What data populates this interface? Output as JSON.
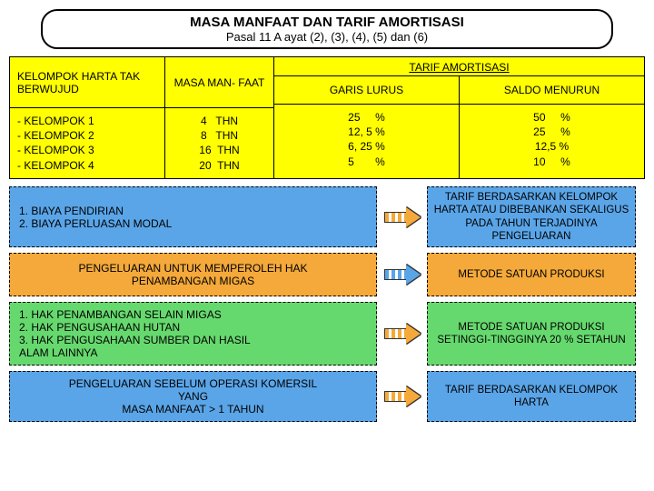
{
  "title": {
    "line1": "MASA MANFAAT DAN TARIF AMORTISASI",
    "line2": "Pasal 11 A ayat (2), (3), (4), (5) dan (6)"
  },
  "table": {
    "bg": "#ffff00",
    "headers": {
      "col1": "KELOMPOK HARTA TAK BERWUJUD",
      "col2": "MASA MAN- FAAT",
      "col34_top": "TARIF AMORTISASI",
      "col3": "GARIS LURUS",
      "col4": "SALDO MENURUN"
    },
    "body": {
      "col1": [
        "- KELOMPOK 1",
        "- KELOMPOK 2",
        "- KELOMPOK 3",
        "- KELOMPOK 4"
      ],
      "col2": [
        "4   THN",
        "8   THN",
        "16  THN",
        "20  THN"
      ],
      "col3": [
        "25     %",
        "12, 5 %",
        "6, 25 %",
        "5       %"
      ],
      "col4": [
        "50     %",
        "25     %",
        "12,5 %",
        "10     %"
      ]
    }
  },
  "rows": [
    {
      "left_bg": "#5aa5e8",
      "left_align": "left",
      "left_width": 405,
      "left_lines": [
        "1. BIAYA PENDIRIAN",
        "2. BIAYA PERLUASAN MODAL"
      ],
      "arrow_color": "#f4a93a",
      "right_bg": "#5aa5e8",
      "right_text": "TARIF BERDASARKAN KELOMPOK HARTA ATAU DIBEBANKAN SEKALIGUS PADA TAHUN TERJADINYA PENGELUARAN"
    },
    {
      "left_bg": "#f4a93a",
      "left_align": "center",
      "left_width": 405,
      "left_lines": [
        "PENGELUARAN UNTUK MEMPEROLEH HAK",
        "PENAMBANGAN MIGAS"
      ],
      "arrow_color": "#5aa5e8",
      "right_bg": "#f4a93a",
      "right_text": "METODE SATUAN PRODUKSI"
    },
    {
      "left_bg": "#66d96e",
      "left_align": "left",
      "left_width": 405,
      "left_lines": [
        "1. HAK PENAMBANGAN SELAIN MIGAS",
        "2. HAK PENGUSAHAAN HUTAN",
        "3. HAK PENGUSAHAAN SUMBER  DAN HASIL",
        "    ALAM LAINNYA"
      ],
      "arrow_color": "#f4a93a",
      "right_bg": "#66d96e",
      "right_text": "METODE  SATUAN PRODUKSI SETINGGI-TINGGINYA 20 % SETAHUN"
    },
    {
      "left_bg": "#5aa5e8",
      "left_align": "center",
      "left_width": 405,
      "left_lines": [
        "PENGELUARAN SEBELUM OPERASI KOMERSIL",
        "YANG",
        "MASA MANFAAT > 1 TAHUN"
      ],
      "arrow_color": "#f4a93a",
      "right_bg": "#5aa5e8",
      "right_text": "TARIF BERDASARKAN KELOMPOK HARTA"
    }
  ]
}
